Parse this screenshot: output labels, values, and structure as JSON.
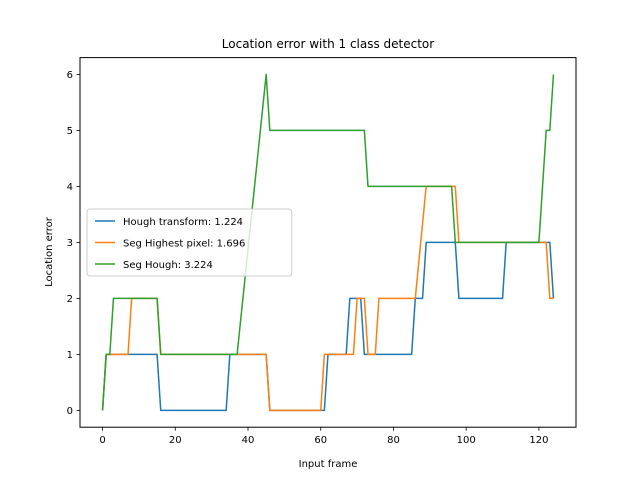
{
  "chart_data": {
    "type": "line",
    "title": "Location error with 1 class detector",
    "xlabel": "Input frame",
    "ylabel": "Location error",
    "xlim": [
      -6.2,
      130.2
    ],
    "ylim": [
      -0.3,
      6.3
    ],
    "xticks": [
      0,
      20,
      40,
      60,
      80,
      100,
      120
    ],
    "yticks": [
      0,
      1,
      2,
      3,
      4,
      5,
      6
    ],
    "grid": false,
    "legend_position": "center-left",
    "series": [
      {
        "name": "Hough transform: 1.224",
        "color": "#1f77b4",
        "points": [
          [
            0,
            0
          ],
          [
            1,
            1
          ],
          [
            15,
            1
          ],
          [
            16,
            0
          ],
          [
            34,
            0
          ],
          [
            35,
            1
          ],
          [
            45,
            1
          ],
          [
            46,
            0
          ],
          [
            61,
            0
          ],
          [
            62,
            1
          ],
          [
            67,
            1
          ],
          [
            68,
            2
          ],
          [
            70,
            2
          ],
          [
            71,
            2
          ],
          [
            72,
            1
          ],
          [
            85,
            1
          ],
          [
            86,
            2
          ],
          [
            88,
            2
          ],
          [
            89,
            3
          ],
          [
            97,
            3
          ],
          [
            98,
            2
          ],
          [
            110,
            2
          ],
          [
            111,
            3
          ],
          [
            123,
            3
          ],
          [
            124,
            2
          ]
        ]
      },
      {
        "name": "Seg Highest pixel: 1.696",
        "color": "#ff7f0e",
        "points": [
          [
            0,
            0
          ],
          [
            1,
            1
          ],
          [
            7,
            1
          ],
          [
            8,
            2
          ],
          [
            15,
            2
          ],
          [
            16,
            1
          ],
          [
            45,
            1
          ],
          [
            46,
            0
          ],
          [
            60,
            0
          ],
          [
            61,
            1
          ],
          [
            69,
            1
          ],
          [
            70,
            2
          ],
          [
            72,
            2
          ],
          [
            73,
            1
          ],
          [
            75,
            1
          ],
          [
            76,
            2
          ],
          [
            86,
            2
          ],
          [
            89,
            4
          ],
          [
            97,
            4
          ],
          [
            98,
            3
          ],
          [
            122,
            3
          ],
          [
            123,
            2
          ],
          [
            124,
            2
          ]
        ]
      },
      {
        "name": "Seg Hough: 3.224",
        "color": "#2ca02c",
        "points": [
          [
            0,
            0
          ],
          [
            1,
            1
          ],
          [
            2,
            1
          ],
          [
            3,
            2
          ],
          [
            15,
            2
          ],
          [
            16,
            1
          ],
          [
            37,
            1
          ],
          [
            45,
            6
          ],
          [
            46,
            5
          ],
          [
            72,
            5
          ],
          [
            73,
            4
          ],
          [
            96,
            4
          ],
          [
            97,
            3
          ],
          [
            120,
            3
          ],
          [
            122,
            5
          ],
          [
            123,
            5
          ],
          [
            124,
            6
          ]
        ]
      }
    ]
  }
}
